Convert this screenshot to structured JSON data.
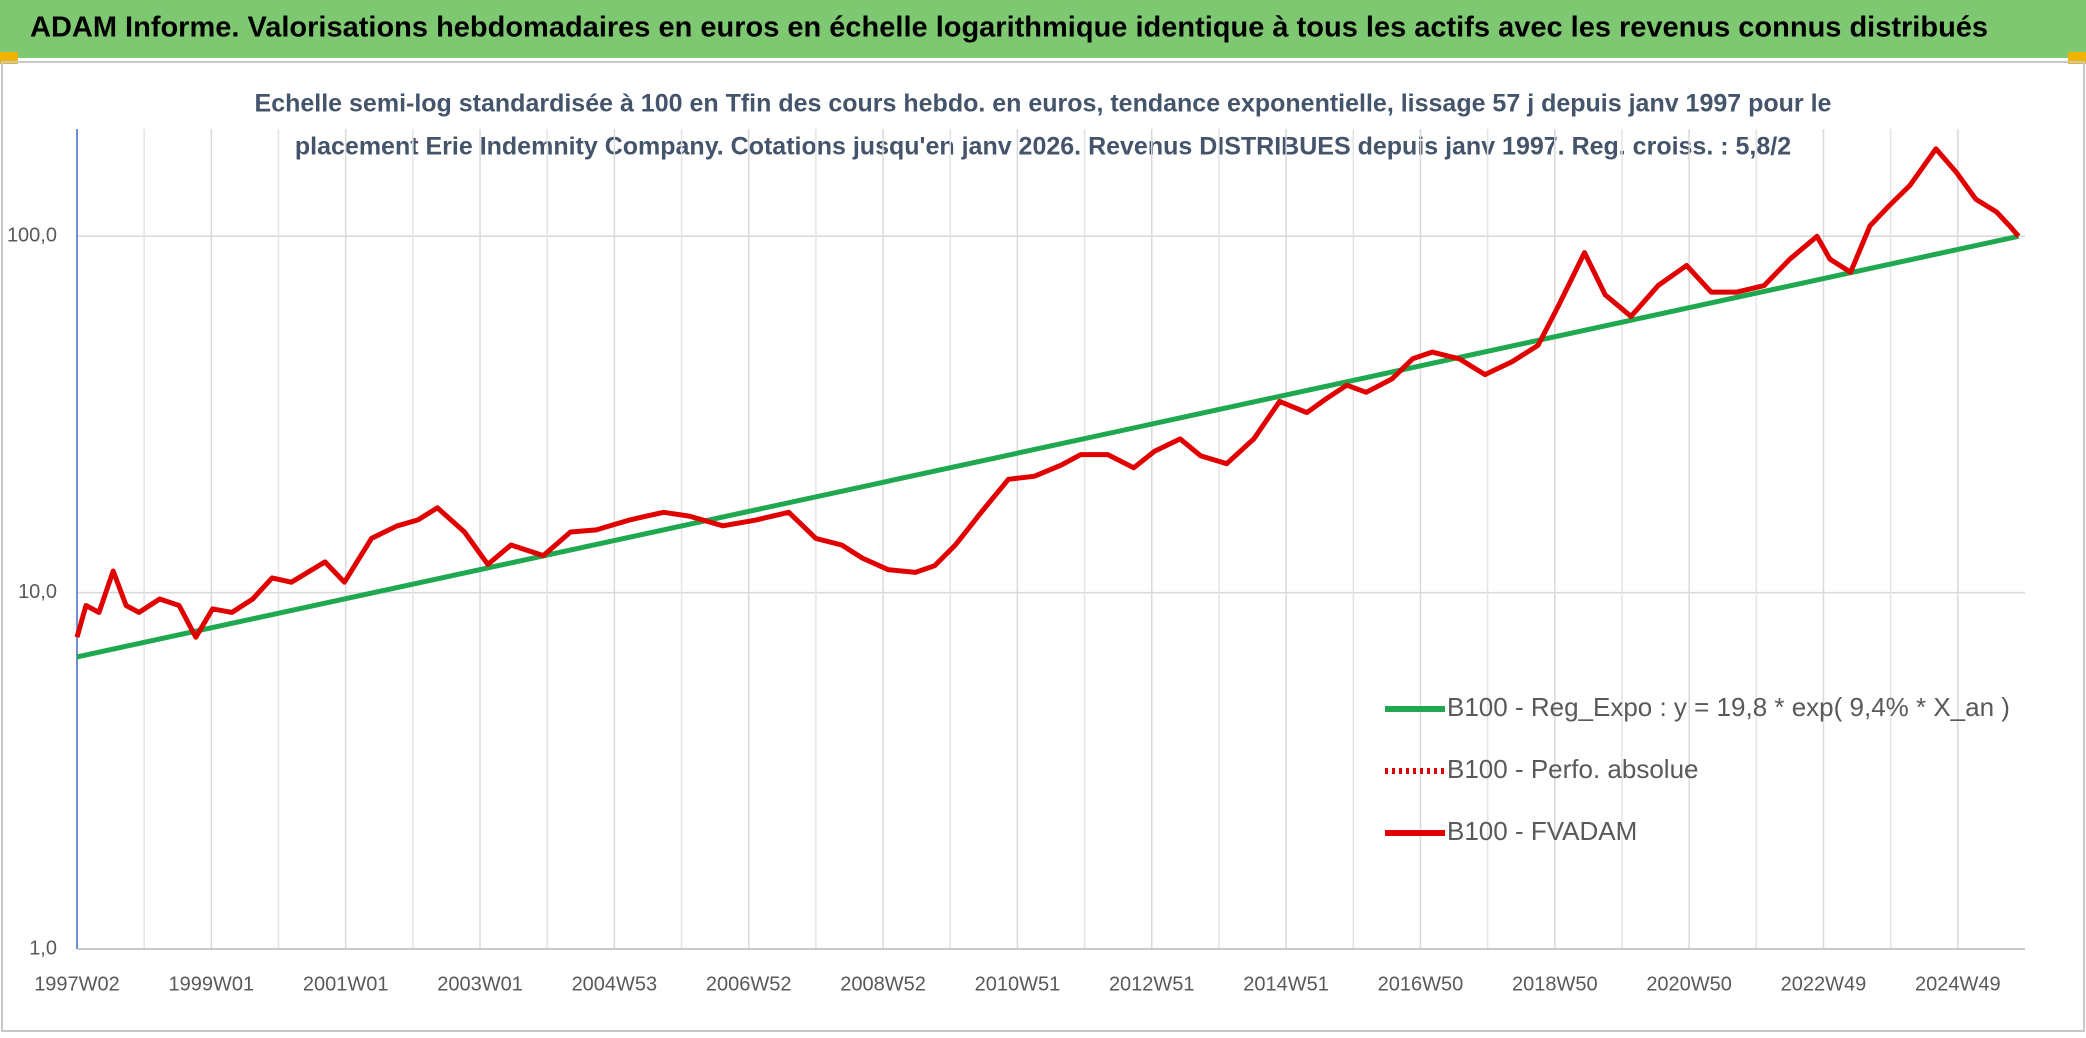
{
  "chart_data": {
    "type": "line",
    "title": "ADAM Informe. Valorisations hebdomadaires en euros en échelle logarithmique identique à tous les actifs avec les revenus connus distribués",
    "subtitle": [
      "Echelle semi-log standardisée à 100 en Tfin des cours hebdo. en euros, tendance exponentielle, lissage 57 j depuis janv 1997 pour le",
      "placement Erie Indemnity Company. Cotations jusqu'en janv 2026. Revenus DISTRIBUES depuis janv 1997. Reg. croiss. : 5,8/2"
    ],
    "log_y": true,
    "grid": true,
    "legend": "bottom-right",
    "xlim": [
      0,
      1508
    ],
    "xticks": [
      {
        "value": 0,
        "label": "1997W02"
      },
      {
        "value": 104,
        "label": "1999W01"
      },
      {
        "value": 208,
        "label": "2001W01"
      },
      {
        "value": 312,
        "label": "2003W01"
      },
      {
        "value": 416,
        "label": "2004W53"
      },
      {
        "value": 520,
        "label": "2006W52"
      },
      {
        "value": 624,
        "label": "2008W52"
      },
      {
        "value": 728,
        "label": "2010W51"
      },
      {
        "value": 832,
        "label": "2012W51"
      },
      {
        "value": 936,
        "label": "2014W51"
      },
      {
        "value": 1040,
        "label": "2016W50"
      },
      {
        "value": 1144,
        "label": "2018W50"
      },
      {
        "value": 1248,
        "label": "2020W50"
      },
      {
        "value": 1352,
        "label": "2022W49"
      },
      {
        "value": 1456,
        "label": "2024W49"
      }
    ],
    "ylim": [
      1,
      200
    ],
    "yticks": [
      {
        "value": 1,
        "label": "1,0"
      },
      {
        "value": 10,
        "label": "10,0"
      },
      {
        "value": 100,
        "label": "100,0"
      }
    ],
    "series": [
      {
        "name": "B100 - Reg_Expo : y = 19,8 * exp( 9,4% *  X_an )",
        "color": "#1fa84f",
        "style": "solid",
        "x": [
          0,
          1503
        ],
        "values": [
          6.6,
          100
        ]
      },
      {
        "name": "B100 - Perfo. absolue",
        "color": "#e00000",
        "style": "dotted",
        "x": [],
        "values": []
      },
      {
        "name": "B100 - FVADAM",
        "color": "#e00000",
        "style": "solid",
        "x": [
          0,
          7,
          17,
          28,
          38,
          48,
          64,
          79,
          92,
          105,
          120,
          136,
          151,
          166,
          192,
          207,
          228,
          248,
          264,
          279,
          300,
          318,
          336,
          361,
          382,
          402,
          428,
          454,
          474,
          500,
          526,
          551,
          572,
          592,
          608,
          628,
          649,
          664,
          680,
          700,
          721,
          741,
          762,
          777,
          798,
          818,
          834,
          854,
          870,
          890,
          911,
          931,
          952,
          967,
          983,
          998,
          1018,
          1034,
          1049,
          1070,
          1090,
          1111,
          1131,
          1147,
          1167,
          1183,
          1203,
          1224,
          1246,
          1265,
          1285,
          1306,
          1326,
          1347,
          1357,
          1373,
          1388,
          1403,
          1419,
          1439,
          1455,
          1470,
          1486,
          1496,
          1503
        ],
        "values": [
          7.5,
          9.2,
          8.8,
          11.5,
          9.2,
          8.8,
          9.6,
          9.2,
          7.5,
          9,
          8.8,
          9.6,
          11,
          10.7,
          12.2,
          10.7,
          14.2,
          15.4,
          16,
          17.3,
          14.8,
          12,
          13.6,
          12.7,
          14.8,
          15,
          16,
          16.8,
          16.4,
          15.4,
          16,
          16.8,
          14.2,
          13.6,
          12.5,
          11.6,
          11.4,
          11.9,
          13.6,
          16.8,
          20.8,
          21.2,
          22.8,
          24.4,
          24.4,
          22.4,
          24.9,
          27,
          24.2,
          23,
          27,
          34.4,
          32,
          35,
          38.2,
          36.5,
          39.8,
          45.3,
          47.3,
          45.3,
          40.9,
          44.5,
          49.4,
          64,
          90,
          68.5,
          59.6,
          72.7,
          82.8,
          69.7,
          69.7,
          72.7,
          86.3,
          100,
          86.3,
          79.3,
          107,
          122,
          139,
          176,
          151,
          127,
          117,
          107,
          100
        ]
      }
    ]
  }
}
